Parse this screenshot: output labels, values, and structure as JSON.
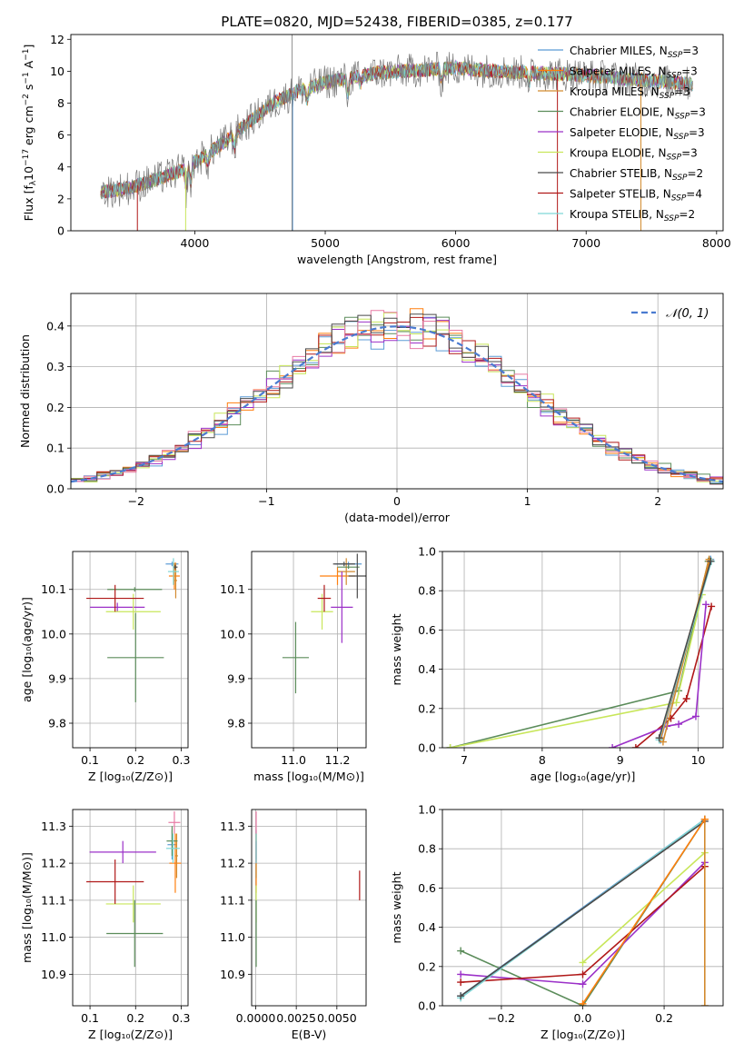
{
  "figure_title": "PLATE=0820, MJD=52438, FIBERID=0385, z=0.177",
  "colors": {
    "series": [
      "#5b9bd5",
      "#ff7f0e",
      "#d28a2e",
      "#5b8c5a",
      "#9b30c8",
      "#c8e65a",
      "#4a4a4a",
      "#b01818",
      "#7fd6d6"
    ],
    "gaussian": "#4a7bd0",
    "hist": [
      "#5b9bd5",
      "#ff7f0e",
      "#5b8c5a",
      "#9b30c8",
      "#c8e65a",
      "#b01818",
      "#e87aa4",
      "#4a4a4a"
    ]
  },
  "chart_data": [
    {
      "id": "spectrum",
      "type": "line",
      "xlabel": "wavelength [Angstrom, rest frame]",
      "ylabel": "Flux [f_λ10^-17 erg cm^-2 s^-1 A^-1]",
      "xlim": [
        3050,
        8050
      ],
      "ylim": [
        0,
        12.3
      ],
      "xticks": [
        4000,
        5000,
        6000,
        7000,
        8000
      ],
      "yticks": [
        0,
        2,
        4,
        6,
        8,
        10,
        12
      ],
      "legend_position": "right",
      "legend": [
        {
          "pre": "Chabrier MILES, N",
          "sub": "SSP",
          "post": "=3"
        },
        {
          "pre": "Salpeter MILES, N",
          "sub": "SSP",
          "post": "=3"
        },
        {
          "pre": "Kroupa MILES, N",
          "sub": "SSP",
          "post": "=3"
        },
        {
          "pre": "Chabrier ELODIE, N",
          "sub": "SSP",
          "post": "=3"
        },
        {
          "pre": "Salpeter ELODIE, N",
          "sub": "SSP",
          "post": "=3"
        },
        {
          "pre": "Kroupa ELODIE, N",
          "sub": "SSP",
          "post": "=3"
        },
        {
          "pre": "Chabrier STELIB, N",
          "sub": "SSP",
          "post": "=2"
        },
        {
          "pre": "Salpeter STELIB, N",
          "sub": "SSP",
          "post": "=4"
        },
        {
          "pre": "Kroupa STELIB, N",
          "sub": "SSP",
          "post": "=2"
        }
      ],
      "continuum": [
        [
          3280,
          2.4
        ],
        [
          3500,
          2.7
        ],
        [
          3700,
          3.2
        ],
        [
          3900,
          3.8
        ],
        [
          4000,
          4.3
        ],
        [
          4200,
          5.4
        ],
        [
          4400,
          6.7
        ],
        [
          4600,
          8.0
        ],
        [
          4800,
          8.8
        ],
        [
          5000,
          9.3
        ],
        [
          5200,
          9.6
        ],
        [
          5400,
          9.9
        ],
        [
          5600,
          10.0
        ],
        [
          5800,
          10.1
        ],
        [
          6000,
          10.2
        ],
        [
          6300,
          10.0
        ],
        [
          6600,
          9.9
        ],
        [
          6900,
          9.8
        ],
        [
          7200,
          9.6
        ],
        [
          7500,
          9.4
        ],
        [
          7820,
          9.2
        ]
      ]
    },
    {
      "id": "residuals",
      "type": "histogram",
      "xlabel": "(data-model)/error",
      "ylabel": "Normed distribution",
      "xlim": [
        -2.5,
        2.5
      ],
      "ylim": [
        0,
        0.48
      ],
      "xticks": [
        -2,
        -1,
        0,
        1,
        2
      ],
      "yticks": [
        0.0,
        0.1,
        0.2,
        0.3,
        0.4
      ],
      "bin_width": 0.1,
      "legend": "𝒩(0, 1)",
      "legend_position": "top-right",
      "grid": true
    },
    {
      "id": "age-vs-Z",
      "type": "scatter",
      "xlabel": "Z [log₁₀(Z/Z⊙)]",
      "ylabel": "age  [log₁₀(age/yr)]",
      "xlim": [
        0.062,
        0.315
      ],
      "ylim": [
        9.745,
        10.185
      ],
      "xticks": [
        0.1,
        0.2,
        0.3
      ],
      "yticks": [
        9.8,
        9.9,
        10.0,
        10.1
      ],
      "grid": true,
      "points": [
        {
          "s": 0,
          "x": 0.28,
          "xe": 0.014,
          "y": 10.157,
          "ye": 0.005
        },
        {
          "s": 1,
          "x": 0.285,
          "xe": 0.012,
          "y": 10.13,
          "ye": 0.03
        },
        {
          "s": 2,
          "x": 0.288,
          "xe": 0.003,
          "y": 10.12,
          "ye": 0.04
        },
        {
          "s": 3,
          "x": 0.198,
          "xe": 0.06,
          "y": 10.1,
          "ye": 0.005
        },
        {
          "s": 4,
          "x": 0.16,
          "xe": 0.06,
          "y": 10.06,
          "ye": 0.01
        },
        {
          "s": 5,
          "x": 0.195,
          "xe": 0.06,
          "y": 10.05,
          "ye": 0.04
        },
        {
          "s": 6,
          "x": 0.287,
          "xe": 0.005,
          "y": 10.15,
          "ye": 0.005
        },
        {
          "s": 7,
          "x": 0.155,
          "xe": 0.063,
          "y": 10.08,
          "ye": 0.03
        },
        {
          "s": 8,
          "x": 0.283,
          "xe": 0.012,
          "y": 10.14,
          "ye": 0.03
        },
        {
          "s": 3,
          "x": 0.2,
          "xe": 0.062,
          "y": 9.947,
          "ye": 0.1
        }
      ]
    },
    {
      "id": "age-vs-mass",
      "type": "scatter",
      "xlabel": "mass [log₁₀(M/M⊙)]",
      "ylabel": "",
      "xlim": [
        10.81,
        11.33
      ],
      "ylim": [
        9.745,
        10.185
      ],
      "xticks": [
        11.0,
        11.2
      ],
      "yticks": [
        9.8,
        9.9,
        10.0,
        10.1
      ],
      "grid": true,
      "points": [
        {
          "s": 0,
          "x": 11.25,
          "xe": 0.06,
          "y": 10.157,
          "ye": 0.005
        },
        {
          "s": 1,
          "x": 11.2,
          "xe": 0.08,
          "y": 10.13,
          "ye": 0.02
        },
        {
          "s": 2,
          "x": 11.24,
          "xe": 0.04,
          "y": 10.14,
          "ye": 0.03
        },
        {
          "s": 3,
          "x": 11.25,
          "xe": 0.05,
          "y": 10.15,
          "ye": 0.004
        },
        {
          "s": 4,
          "x": 11.22,
          "xe": 0.05,
          "y": 10.06,
          "ye": 0.08
        },
        {
          "s": 5,
          "x": 11.13,
          "xe": 0.05,
          "y": 10.05,
          "ye": 0.04
        },
        {
          "s": 6,
          "x": 11.23,
          "xe": 0.05,
          "y": 10.157,
          "ye": 0.005
        },
        {
          "s": 7,
          "x": 11.14,
          "xe": 0.03,
          "y": 10.08,
          "ye": 0.03
        },
        {
          "s": 6,
          "x": 11.29,
          "xe": 0.04,
          "y": 10.13,
          "ye": 0.05
        },
        {
          "s": 3,
          "x": 11.01,
          "xe": 0.06,
          "y": 9.947,
          "ye": 0.08
        }
      ]
    },
    {
      "id": "massweight-vs-age",
      "type": "line",
      "xlabel": "age  [log₁₀(age/yr)]",
      "ylabel": "mass weight",
      "xlim": [
        6.72,
        10.32
      ],
      "ylim": [
        0,
        1.0
      ],
      "xticks": [
        7,
        8,
        9,
        10
      ],
      "yticks": [
        0.0,
        0.2,
        0.4,
        0.6,
        0.8,
        1.0
      ],
      "grid": true,
      "series": [
        {
          "s": 3,
          "x": [
            6.82,
            9.75,
            10.13
          ],
          "y": [
            0.0,
            0.29,
            0.95
          ]
        },
        {
          "s": 5,
          "x": [
            6.82,
            9.72,
            10.05
          ],
          "y": [
            0.0,
            0.23,
            0.78
          ]
        },
        {
          "s": 7,
          "x": [
            9.2,
            9.65,
            9.85,
            10.17
          ],
          "y": [
            0.0,
            0.15,
            0.25,
            0.72
          ]
        },
        {
          "s": 4,
          "x": [
            8.9,
            9.6,
            9.75,
            9.97,
            10.1
          ],
          "y": [
            0.0,
            0.11,
            0.12,
            0.16,
            0.73
          ]
        },
        {
          "s": 0,
          "x": [
            9.52,
            10.16
          ],
          "y": [
            0.04,
            0.96
          ]
        },
        {
          "s": 1,
          "x": [
            9.52,
            10.15
          ],
          "y": [
            0.05,
            0.95
          ]
        },
        {
          "s": 2,
          "x": [
            9.55,
            10.14
          ],
          "y": [
            0.03,
            0.96
          ]
        },
        {
          "s": 8,
          "x": [
            9.5,
            10.17
          ],
          "y": [
            0.04,
            0.95
          ]
        },
        {
          "s": 6,
          "x": [
            9.5,
            10.16
          ],
          "y": [
            0.05,
            0.95
          ]
        }
      ]
    },
    {
      "id": "mass-vs-Z",
      "type": "scatter",
      "xlabel": "Z [log₁₀(Z/Z⊙)]",
      "ylabel": "mass [log₁₀(M/M⊙)]",
      "xlim": [
        0.062,
        0.315
      ],
      "ylim": [
        10.815,
        11.345
      ],
      "xticks": [
        0.1,
        0.2,
        0.3
      ],
      "yticks": [
        10.9,
        11.0,
        11.1,
        11.2,
        11.3
      ],
      "grid": true,
      "points": [
        {
          "s": 0,
          "x": 0.28,
          "xe": 0.01,
          "y": 11.25,
          "ye": 0.04
        },
        {
          "s": 1,
          "x": 0.287,
          "xe": 0.013,
          "y": 11.2,
          "ye": 0.08
        },
        {
          "s": 2,
          "x": 0.29,
          "xe": 0.003,
          "y": 11.22,
          "ye": 0.06
        },
        {
          "s": 3,
          "x": 0.28,
          "xe": 0.012,
          "y": 11.26,
          "ye": 0.04
        },
        {
          "s": 4,
          "x": 0.172,
          "xe": 0.073,
          "y": 11.23,
          "ye": 0.03
        },
        {
          "s": 5,
          "x": 0.195,
          "xe": 0.06,
          "y": 11.09,
          "ye": 0.05
        },
        {
          "s": 9,
          "x": 0.285,
          "xe": 0.013,
          "y": 11.31,
          "ye": 0.03
        },
        {
          "s": 7,
          "x": 0.155,
          "xe": 0.063,
          "y": 11.15,
          "ye": 0.06
        },
        {
          "s": 8,
          "x": 0.282,
          "xe": 0.015,
          "y": 11.24,
          "ye": 0.04
        },
        {
          "s": 3,
          "x": 0.198,
          "xe": 0.062,
          "y": 11.01,
          "ye": 0.09
        }
      ]
    },
    {
      "id": "mass-vs-EBV",
      "type": "scatter",
      "xlabel": "E(B-V)",
      "ylabel": "",
      "xlim": [
        -0.00025,
        0.0068
      ],
      "ylim": [
        10.815,
        11.345
      ],
      "xticks": [
        0.0,
        0.0025,
        0.005
      ],
      "xticklabels": [
        "0.0000",
        "0.0025",
        "0.0050"
      ],
      "yticks": [
        10.9,
        11.0,
        11.1,
        11.2,
        11.3
      ],
      "grid": true,
      "points": [
        {
          "s": 0,
          "x": 3e-05,
          "xe": 0,
          "y": 11.25,
          "ye": 0.04
        },
        {
          "s": 1,
          "x": 3e-05,
          "xe": 0,
          "y": 11.2,
          "ye": 0.08
        },
        {
          "s": 2,
          "x": 3e-05,
          "xe": 0,
          "y": 11.22,
          "ye": 0.06
        },
        {
          "s": 4,
          "x": 3e-05,
          "xe": 0,
          "y": 11.23,
          "ye": 0.03
        },
        {
          "s": 5,
          "x": 3e-05,
          "xe": 0,
          "y": 11.09,
          "ye": 0.05
        },
        {
          "s": 9,
          "x": 3e-05,
          "xe": 0,
          "y": 11.31,
          "ye": 0.03
        },
        {
          "s": 8,
          "x": 3e-05,
          "xe": 0,
          "y": 11.24,
          "ye": 0.04
        },
        {
          "s": 3,
          "x": 3e-05,
          "xe": 0,
          "y": 11.01,
          "ye": 0.09
        },
        {
          "s": 7,
          "x": 0.0064,
          "xe": 0,
          "y": 11.14,
          "ye": 0.04
        }
      ]
    },
    {
      "id": "massweight-vs-Z",
      "type": "line",
      "xlabel": "Z [log₁₀(Z/Z⊙)]",
      "ylabel": "mass weight",
      "xlim": [
        -0.345,
        0.345
      ],
      "ylim": [
        0,
        1.0
      ],
      "xticks": [
        -0.2,
        0.0,
        0.2
      ],
      "yticks": [
        0.0,
        0.2,
        0.4,
        0.6,
        0.8,
        1.0
      ],
      "grid": true,
      "series": [
        {
          "s": 3,
          "x": [
            -0.3,
            0.0,
            0.3
          ],
          "y": [
            0.28,
            0.0,
            0.95
          ]
        },
        {
          "s": 4,
          "x": [
            -0.3,
            0.0,
            0.3
          ],
          "y": [
            0.16,
            0.11,
            0.73
          ]
        },
        {
          "s": 7,
          "x": [
            -0.3,
            0.0,
            0.3
          ],
          "y": [
            0.12,
            0.16,
            0.71
          ]
        },
        {
          "s": 5,
          "x": [
            0.0,
            0.3
          ],
          "y": [
            0.22,
            0.78
          ]
        },
        {
          "s": 0,
          "x": [
            -0.3,
            0.3
          ],
          "y": [
            0.05,
            0.95
          ]
        },
        {
          "s": 8,
          "x": [
            -0.3,
            0.3
          ],
          "y": [
            0.04,
            0.95
          ]
        },
        {
          "s": 6,
          "x": [
            -0.3,
            0.3
          ],
          "y": [
            0.05,
            0.94
          ]
        },
        {
          "s": 2,
          "x": [
            0.3,
            0.3
          ],
          "y": [
            0.0,
            0.95
          ]
        },
        {
          "s": 1,
          "x": [
            0.0,
            0.3
          ],
          "y": [
            0.01,
            0.95
          ]
        }
      ]
    }
  ]
}
